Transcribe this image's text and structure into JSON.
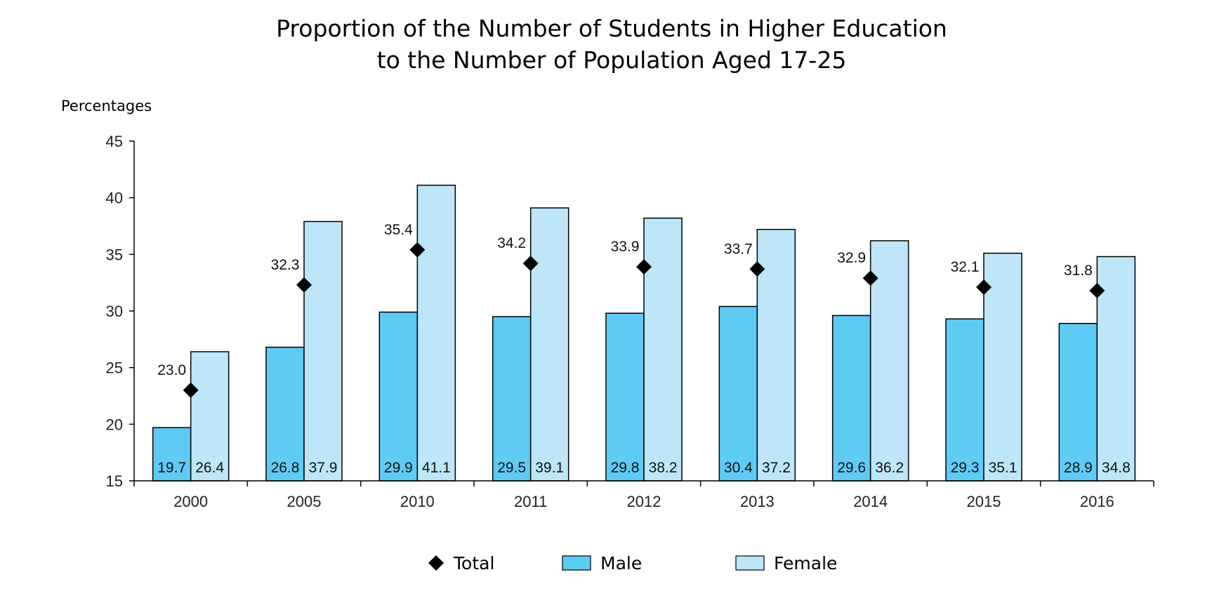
{
  "chart_data": {
    "type": "bar",
    "title": [
      "Proportion of the Number of Students in Higher Education",
      "to the Number of Population Aged 17-25"
    ],
    "ylabel": "Percentages",
    "xlabel": "",
    "ylim": [
      15,
      45
    ],
    "yticks": [
      15,
      20,
      25,
      30,
      35,
      40,
      45
    ],
    "categories": [
      "2000",
      "2005",
      "2010",
      "2011",
      "2012",
      "2013",
      "2014",
      "2015",
      "2016"
    ],
    "series": [
      {
        "name": "Male",
        "kind": "bar",
        "color": "#5ecbf5",
        "values": [
          19.7,
          26.8,
          29.9,
          29.5,
          29.8,
          30.4,
          29.6,
          29.3,
          28.9
        ],
        "labels": [
          "19.7",
          "26.8",
          "29.9",
          "29.5",
          "29.8",
          "30.4",
          "29.6",
          "29.3",
          "28.9"
        ]
      },
      {
        "name": "Female",
        "kind": "bar",
        "color": "#bde6f9",
        "values": [
          26.4,
          37.9,
          41.1,
          39.1,
          38.2,
          37.2,
          36.2,
          35.1,
          34.8
        ],
        "labels": [
          "26.4",
          "37.9",
          "41.1",
          "39.1",
          "38.2",
          "37.2",
          "36.2",
          "35.1",
          "34.8"
        ]
      },
      {
        "name": "Total",
        "kind": "marker",
        "color": "#000000",
        "values": [
          23.0,
          32.3,
          35.4,
          34.2,
          33.9,
          33.7,
          32.9,
          32.1,
          31.8
        ],
        "labels": [
          "23.0",
          "32.3",
          "35.4",
          "34.2",
          "33.9",
          "33.7",
          "32.9",
          "32.1",
          "31.8"
        ]
      }
    ],
    "legend": {
      "placement": "bottom-center",
      "order": [
        "Total",
        "Male",
        "Female"
      ]
    },
    "grid": false
  }
}
